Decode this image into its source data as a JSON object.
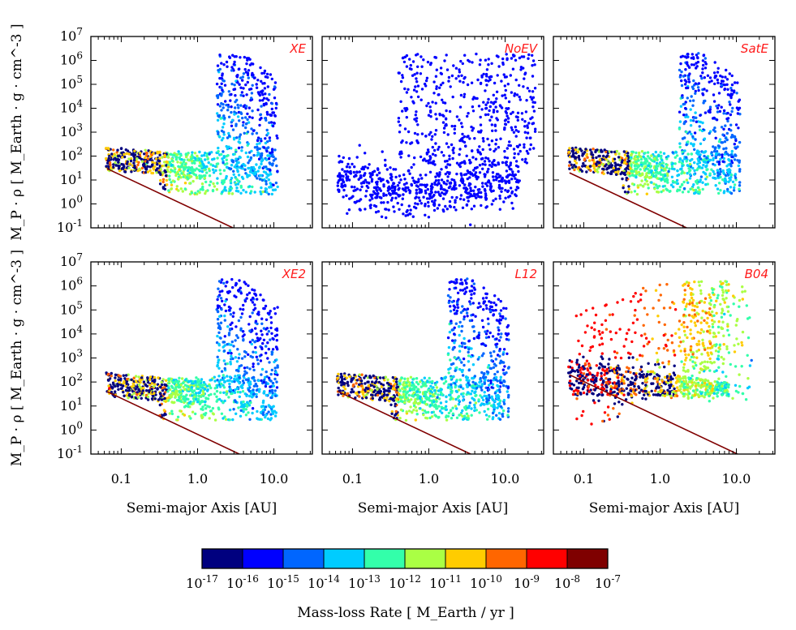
{
  "chart_data": {
    "type": "scatter",
    "ylabel": "M_P · ρ  [ M_Earth · g · cm^-3 ]",
    "xlabel": "Semi-major Axis  [AU]",
    "x_scale": "log",
    "y_scale": "log",
    "xlim": [
      0.04,
      32
    ],
    "ylim": [
      0.1,
      10000000
    ],
    "x_ticks": [
      "0.1",
      "1.0",
      "10.0"
    ],
    "y_ticks": [
      {
        "base": "10",
        "exp": "-1"
      },
      {
        "base": "10",
        "exp": "0"
      },
      {
        "base": "10",
        "exp": "1"
      },
      {
        "base": "10",
        "exp": "2"
      },
      {
        "base": "10",
        "exp": "3"
      },
      {
        "base": "10",
        "exp": "4"
      },
      {
        "base": "10",
        "exp": "5"
      },
      {
        "base": "10",
        "exp": "6"
      },
      {
        "base": "10",
        "exp": "7"
      }
    ],
    "panels": [
      {
        "label": "XE",
        "threshold_line": {
          "y_at_0_065": 30,
          "slope": -1.5
        }
      },
      {
        "label": "NoEV",
        "threshold_line": null
      },
      {
        "label": "SatE",
        "threshold_line": {
          "y_at_0_065": 20,
          "slope": -1.5
        }
      },
      {
        "label": "XE2",
        "threshold_line": {
          "y_at_0_065": 40,
          "slope": -1.5
        }
      },
      {
        "label": "L12",
        "threshold_line": {
          "y_at_0_065": 40,
          "slope": -1.5
        }
      },
      {
        "label": "B04",
        "threshold_line": {
          "y_at_0_065": 200,
          "slope": -1.5
        }
      }
    ],
    "colorbar": {
      "label": "Mass-loss Rate [ M_Earth / yr ]",
      "ticks": [
        {
          "base": "10",
          "exp": "-17"
        },
        {
          "base": "10",
          "exp": "-16"
        },
        {
          "base": "10",
          "exp": "-15"
        },
        {
          "base": "10",
          "exp": "-14"
        },
        {
          "base": "10",
          "exp": "-13"
        },
        {
          "base": "10",
          "exp": "-12"
        },
        {
          "base": "10",
          "exp": "-11"
        },
        {
          "base": "10",
          "exp": "-10"
        },
        {
          "base": "10",
          "exp": "-9"
        },
        {
          "base": "10",
          "exp": "-8"
        },
        {
          "base": "10",
          "exp": "-7"
        }
      ],
      "colors": [
        "#00007f",
        "#0000ff",
        "#0066ff",
        "#00ccff",
        "#33ffaa",
        "#aaff44",
        "#ffcc00",
        "#ff6600",
        "#ff0000",
        "#7f0000"
      ]
    }
  }
}
